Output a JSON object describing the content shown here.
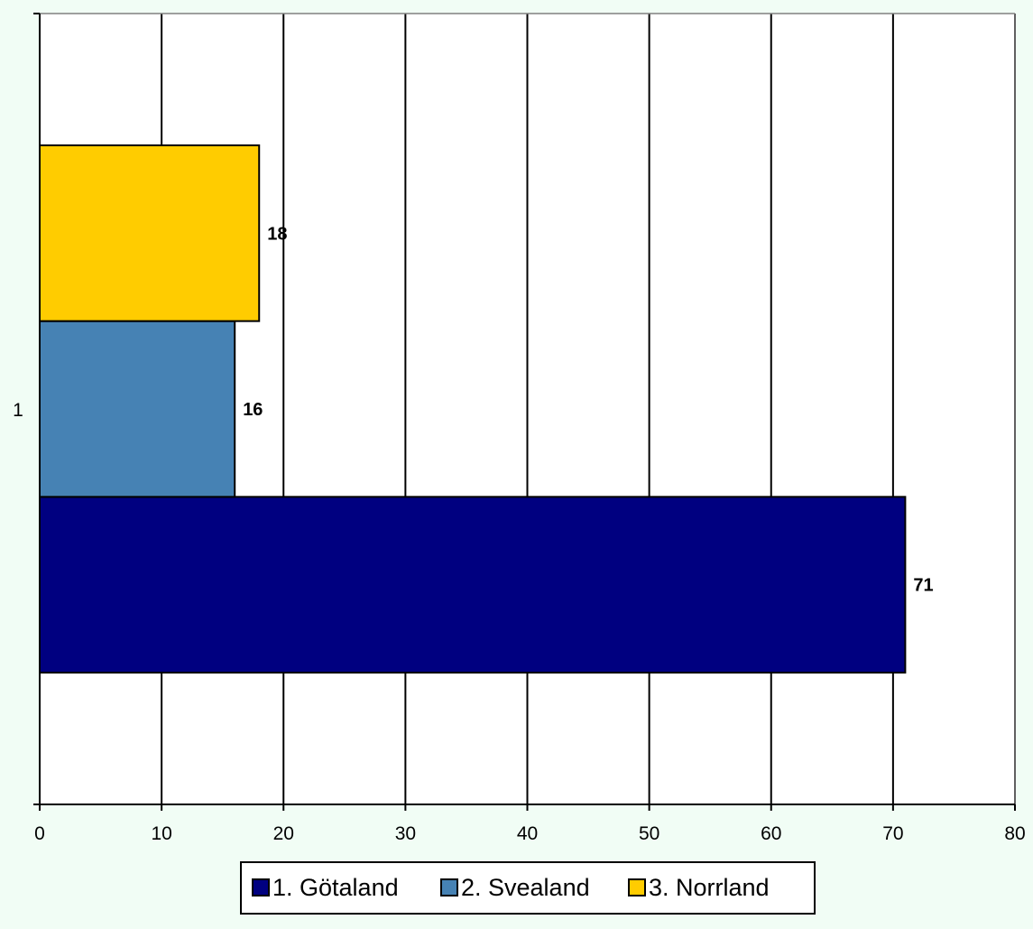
{
  "chart_data": {
    "type": "bar",
    "orientation": "horizontal",
    "categories": [
      "1"
    ],
    "series": [
      {
        "name": "1. Götaland",
        "values": [
          71
        ],
        "color": "#000080"
      },
      {
        "name": "2. Svealand",
        "values": [
          16
        ],
        "color": "#4682b4"
      },
      {
        "name": "3. Norrland",
        "values": [
          18
        ],
        "color": "#ffcc00"
      }
    ],
    "xlim": [
      0,
      80
    ],
    "xticks": [
      0,
      10,
      20,
      30,
      40,
      50,
      60,
      70,
      80
    ],
    "grid": true,
    "data_labels": true,
    "legend_position": "bottom",
    "colors": {
      "background": "#f1fdf5",
      "plot_background": "#ffffff"
    }
  }
}
